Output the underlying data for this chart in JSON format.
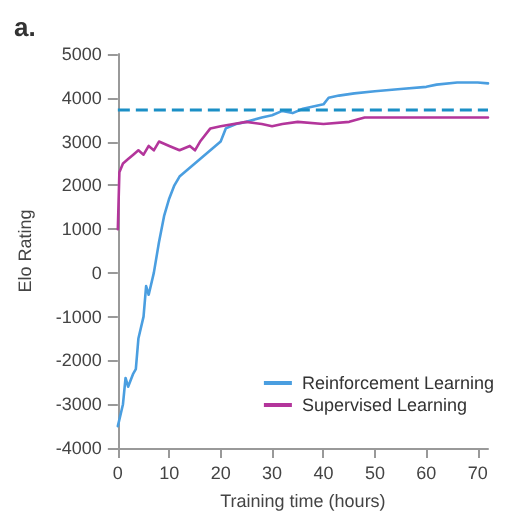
{
  "chart_data": {
    "type": "line",
    "title": "a.",
    "xlabel": "Training time (hours)",
    "ylabel": "Elo Rating",
    "xlim": [
      0,
      72
    ],
    "xticks": [
      0,
      10,
      20,
      30,
      40,
      50,
      60,
      70
    ],
    "ylim": [
      -4000,
      5000
    ],
    "yticks": [
      -4000,
      -3000,
      -2000,
      -1000,
      0,
      1000,
      2000,
      3000,
      4000,
      5000
    ],
    "grid": false,
    "legend": "bottom right",
    "marker": "none",
    "line_style": "solid",
    "series": [
      {
        "name": "Reinforcement Learning",
        "color": "#4a9ee0",
        "x": [
          0,
          1,
          1.5,
          2,
          3,
          3.5,
          4,
          5,
          5.5,
          6,
          7,
          8,
          9,
          10,
          11,
          12,
          14,
          16,
          18,
          20,
          21,
          23,
          25,
          28,
          30,
          32,
          34,
          36,
          38,
          40,
          41,
          43,
          46,
          50,
          55,
          60,
          62,
          66,
          70,
          72
        ],
        "values": [
          -3500,
          -3000,
          -2400,
          -2600,
          -2300,
          -2200,
          -1500,
          -1000,
          -300,
          -500,
          0,
          700,
          1300,
          1700,
          2000,
          2200,
          2400,
          2600,
          2800,
          3000,
          3300,
          3400,
          3450,
          3550,
          3600,
          3700,
          3650,
          3750,
          3800,
          3850,
          4000,
          4050,
          4100,
          4150,
          4200,
          4250,
          4300,
          4350,
          4350,
          4330
        ]
      },
      {
        "name": "Supervised Learning",
        "color": "#b3359b",
        "x": [
          0,
          0.3,
          1,
          2,
          3,
          4,
          5,
          6,
          7,
          8,
          10,
          12,
          14,
          15,
          16,
          18,
          20,
          25,
          28,
          30,
          32,
          35,
          40,
          45,
          48,
          55,
          65,
          72
        ],
        "values": [
          1000,
          2300,
          2500,
          2600,
          2700,
          2800,
          2700,
          2900,
          2800,
          3000,
          2900,
          2800,
          2900,
          2800,
          3000,
          3300,
          3350,
          3450,
          3400,
          3350,
          3400,
          3450,
          3400,
          3450,
          3550,
          3550,
          3550,
          3550
        ]
      }
    ],
    "ref_lines": [
      {
        "axis": "y",
        "value": 3740,
        "color": "#1b8fc6",
        "line_style": "dashed"
      }
    ]
  }
}
